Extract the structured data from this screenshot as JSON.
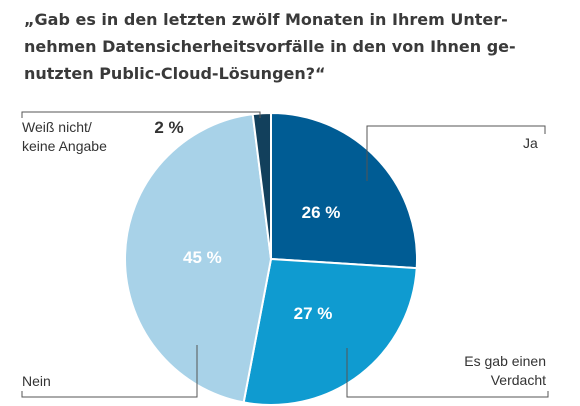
{
  "title_lines": [
    "„Gab es in den letzten zwölf Monaten in Ihrem Unter-",
    "nehmen Datensicherheitsvorfälle in den von Ihnen ge-",
    "nutzten Public-Cloud-Lösungen?“"
  ],
  "chart_data": {
    "type": "pie",
    "title": "„Gab es in den letzten zwölf Monaten in Ihrem Unternehmen Datensicherheitsvorfälle in den von Ihnen genutzten Public-Cloud-Lösungen?“",
    "slices": [
      {
        "label": "Ja",
        "value": 26,
        "value_label": "26 %",
        "color": "#005c94"
      },
      {
        "label": "Es gab einen Verdacht",
        "value": 27,
        "value_label": "27 %",
        "color": "#0f9bd0"
      },
      {
        "label": "Nein",
        "value": 45,
        "value_label": "45 %",
        "color": "#a8d2e8"
      },
      {
        "label": "Weiß nicht/ keine Angabe",
        "value": 2,
        "value_label": "2 %",
        "color": "#12405c"
      }
    ]
  },
  "labels": {
    "ja": [
      "Ja"
    ],
    "verdacht": [
      "Es gab einen",
      "Verdacht"
    ],
    "nein": [
      "Nein"
    ],
    "weiss": [
      "Weiß nicht/",
      "keine Angabe"
    ]
  },
  "small_value_label": "2 %"
}
